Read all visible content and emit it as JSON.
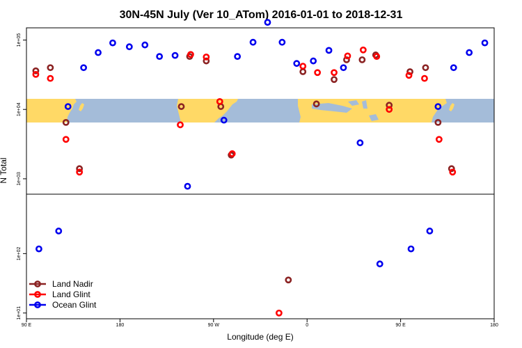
{
  "chart_data": {
    "type": "scatter",
    "title": "30N-45N July (Ver 10_ATom)   2016-01-01 to 2018-12-31",
    "xlabel": "Longitude (deg E)",
    "ylabel": "N Total",
    "log_y": true,
    "x_ticks": [
      {
        "value": 90,
        "label": "90 E"
      },
      {
        "value": 180,
        "label": "180"
      },
      {
        "value": 270,
        "label": "90 W"
      },
      {
        "value": 360,
        "label": "0"
      },
      {
        "value": 450,
        "label": "90 E"
      },
      {
        "value": 540,
        "label": "180"
      }
    ],
    "xlim": [
      90,
      540
    ],
    "upper_panel": {
      "ylim": [
        600,
        150000
      ],
      "y_ticks": [
        {
          "value": 1000,
          "label": "1e+03"
        },
        {
          "value": 10000,
          "label": "1e+04"
        },
        {
          "value": 100000,
          "label": "1e+05"
        }
      ],
      "map_band": {
        "ymin": 5000,
        "ymax": 12000,
        "land_color": "#FFD966",
        "ocean_color": "#A4BCD9"
      }
    },
    "lower_panel": {
      "ylim": [
        8,
        1000
      ],
      "y_ticks": [
        {
          "value": 10,
          "label": "1e+01"
        },
        {
          "value": 100,
          "label": "1e+02"
        }
      ]
    },
    "legend": {
      "position": "bottom-left",
      "entries": [
        {
          "name": "Land Nadir",
          "color": "#8B2323"
        },
        {
          "name": "Land Glint",
          "color": "#FF0000"
        },
        {
          "name": "Ocean Glint",
          "color": "#0000EE"
        }
      ]
    },
    "series": [
      {
        "name": "Land Nadir",
        "color": "#8B2323",
        "points": [
          {
            "x": 99,
            "y": 36000
          },
          {
            "x": 113,
            "y": 40000
          },
          {
            "x": 128,
            "y": 6500
          },
          {
            "x": 141,
            "y": 1400
          },
          {
            "x": 239,
            "y": 11000
          },
          {
            "x": 247,
            "y": 58000
          },
          {
            "x": 263,
            "y": 50000
          },
          {
            "x": 277,
            "y": 11000
          },
          {
            "x": 287,
            "y": 2200
          },
          {
            "x": 356,
            "y": 35000
          },
          {
            "x": 369,
            "y": 12000
          },
          {
            "x": 386,
            "y": 27000
          },
          {
            "x": 398,
            "y": 52000
          },
          {
            "x": 413,
            "y": 52000
          },
          {
            "x": 426,
            "y": 61000
          },
          {
            "x": 439,
            "y": 11500
          },
          {
            "x": 459,
            "y": 35000
          },
          {
            "x": 474,
            "y": 40000
          },
          {
            "x": 486,
            "y": 6500
          },
          {
            "x": 499,
            "y": 1400
          }
        ]
      },
      {
        "name": "Land Glint",
        "color": "#FF0000",
        "points": [
          {
            "x": 99,
            "y": 32000
          },
          {
            "x": 113,
            "y": 28000
          },
          {
            "x": 128,
            "y": 3700
          },
          {
            "x": 141,
            "y": 1250
          },
          {
            "x": 238,
            "y": 6000
          },
          {
            "x": 248,
            "y": 62000
          },
          {
            "x": 263,
            "y": 57000
          },
          {
            "x": 276,
            "y": 13000
          },
          {
            "x": 288,
            "y": 2300
          },
          {
            "x": 356,
            "y": 42000
          },
          {
            "x": 370,
            "y": 34000
          },
          {
            "x": 386,
            "y": 34000
          },
          {
            "x": 399,
            "y": 59000
          },
          {
            "x": 414,
            "y": 72000
          },
          {
            "x": 427,
            "y": 58000
          },
          {
            "x": 439,
            "y": 10000
          },
          {
            "x": 458,
            "y": 31000
          },
          {
            "x": 473,
            "y": 28000
          },
          {
            "x": 487,
            "y": 3700
          },
          {
            "x": 500,
            "y": 1250
          }
        ]
      },
      {
        "name": "Ocean Glint",
        "color": "#0000EE",
        "points": [
          {
            "x": 130,
            "y": 11000
          },
          {
            "x": 145,
            "y": 40000
          },
          {
            "x": 159,
            "y": 66000
          },
          {
            "x": 173,
            "y": 91000
          },
          {
            "x": 189,
            "y": 80000
          },
          {
            "x": 204,
            "y": 85000
          },
          {
            "x": 218,
            "y": 58000
          },
          {
            "x": 233,
            "y": 60000
          },
          {
            "x": 245,
            "y": 780
          },
          {
            "x": 280,
            "y": 7000
          },
          {
            "x": 293,
            "y": 58000
          },
          {
            "x": 308,
            "y": 93000
          },
          {
            "x": 322,
            "y": 180000
          },
          {
            "x": 336,
            "y": 93000
          },
          {
            "x": 350,
            "y": 46000
          },
          {
            "x": 366,
            "y": 50000
          },
          {
            "x": 381,
            "y": 71000
          },
          {
            "x": 395,
            "y": 40000
          },
          {
            "x": 411,
            "y": 3300
          },
          {
            "x": 486,
            "y": 11000
          },
          {
            "x": 501,
            "y": 40000
          },
          {
            "x": 516,
            "y": 66000
          },
          {
            "x": 531,
            "y": 91000
          }
        ]
      },
      {
        "name": "Land Glint (lower)",
        "color": "#FF0000",
        "panel": "lower",
        "points": [
          {
            "x": 333,
            "y": 10
          }
        ]
      },
      {
        "name": "Land Nadir (lower)",
        "color": "#8B2323",
        "panel": "lower",
        "points": [
          {
            "x": 342,
            "y": 36
          }
        ]
      },
      {
        "name": "Ocean Glint (lower)",
        "color": "#0000EE",
        "panel": "lower",
        "points": [
          {
            "x": 102,
            "y": 120
          },
          {
            "x": 121,
            "y": 240
          },
          {
            "x": 430,
            "y": 67
          },
          {
            "x": 460,
            "y": 120
          },
          {
            "x": 478,
            "y": 240
          }
        ]
      }
    ]
  }
}
